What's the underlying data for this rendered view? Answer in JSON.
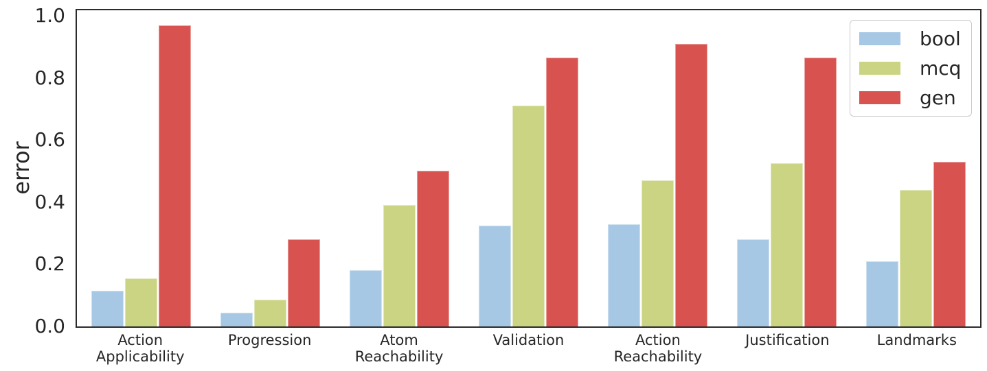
{
  "figure": {
    "background": "#ffffff",
    "text_color": "#262626",
    "spine_color": "#2b2b2b"
  },
  "chart_data": {
    "type": "bar",
    "title": "",
    "xlabel": "",
    "ylabel": "error",
    "ylim": [
      0,
      1.03
    ],
    "grid": false,
    "legend_position": "upper right",
    "ytick_values": [
      0.0,
      0.2,
      0.4,
      0.6,
      0.8,
      1.0
    ],
    "yticklabels": [
      "0.0",
      "0.2",
      "0.4",
      "0.6",
      "0.8",
      "1.0"
    ],
    "categories": [
      "Action\nApplicability",
      "Progression",
      "Atom\nReachability",
      "Validation",
      "Action\nReachability",
      "Justification",
      "Landmarks"
    ],
    "series": [
      {
        "name": "bool",
        "color": "#a7c8e4",
        "values": [
          0.115,
          0.045,
          0.18,
          0.325,
          0.33,
          0.28,
          0.21
        ]
      },
      {
        "name": "mcq",
        "color": "#cbd483",
        "values": [
          0.155,
          0.085,
          0.39,
          0.71,
          0.47,
          0.525,
          0.44
        ]
      },
      {
        "name": "gen",
        "color": "#d8534f",
        "values": [
          0.97,
          0.28,
          0.5,
          0.865,
          0.91,
          0.865,
          0.53
        ]
      }
    ]
  }
}
